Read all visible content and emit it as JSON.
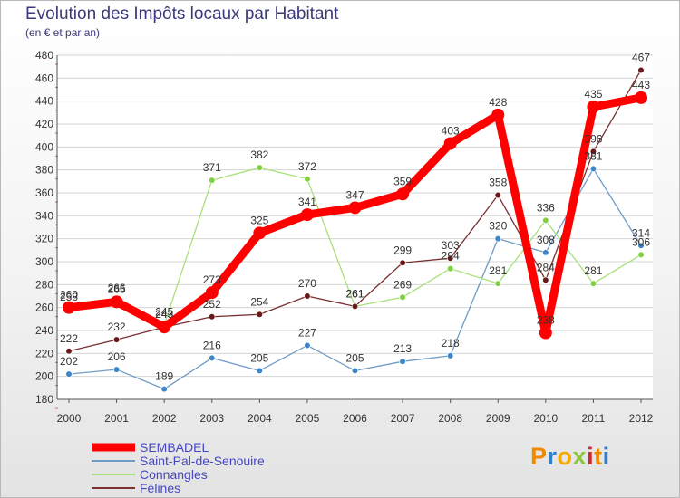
{
  "title": "Evolution des Impôts locaux par Habitant",
  "subtitle": "(en € et par an)",
  "logo": {
    "text": "Proxiti",
    "colors": [
      "#f08a00",
      "#2f7fc4",
      "#f5a800",
      "#8bc63e",
      "#d6262e",
      "#f08a00",
      "#2f7fc4"
    ]
  },
  "chart_data": {
    "type": "line",
    "title": "Evolution des Impôts locaux par Habitant",
    "ylabel": "(en € et par an)",
    "xlabel": "",
    "ylim": [
      180,
      480
    ],
    "ytick_step": 20,
    "grid": "horizontal",
    "x": [
      "2000",
      "2001",
      "2002",
      "2003",
      "2004",
      "2005",
      "2006",
      "2007",
      "2008",
      "2009",
      "2010",
      "2011",
      "2012"
    ],
    "series": [
      {
        "name": "SEMBADEL",
        "color": "#ff0000",
        "marker": "#ff0000",
        "emphasis": true,
        "values": [
          260,
          265,
          243,
          273,
          325,
          341,
          347,
          359,
          403,
          428,
          238,
          435,
          443
        ]
      },
      {
        "name": "Saint-Pal-de-Senouire",
        "color": "#6f9bc6",
        "marker": "#3e86c8",
        "values": [
          202,
          206,
          189,
          216,
          205,
          227,
          205,
          213,
          218,
          320,
          308,
          381,
          314
        ]
      },
      {
        "name": "Connangles",
        "color": "#a8e07a",
        "marker": "#7ed13e",
        "values": [
          258,
          266,
          245,
          371,
          382,
          372,
          261,
          269,
          294,
          281,
          336,
          281,
          306
        ]
      },
      {
        "name": "Félines",
        "color": "#7a3030",
        "marker": "#6a1818",
        "values": [
          222,
          232,
          243,
          252,
          254,
          270,
          261,
          299,
          303,
          358,
          284,
          396,
          467
        ]
      }
    ]
  }
}
